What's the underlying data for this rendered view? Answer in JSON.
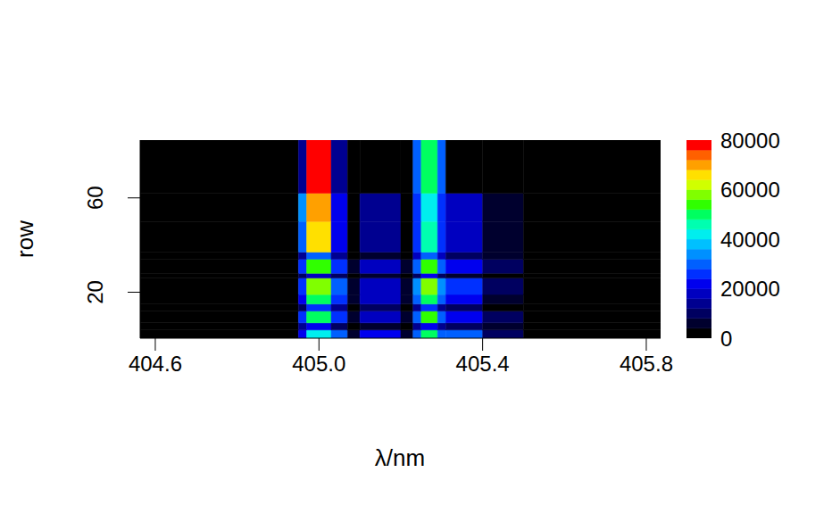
{
  "chart_data": {
    "type": "heatmap",
    "x_label": "λ/nm",
    "y_label": "row",
    "xlim": [
      404.563,
      405.835
    ],
    "xticks": [
      {
        "value": 404.6,
        "label": "404.6"
      },
      {
        "value": 405,
        "label": "405.0"
      },
      {
        "value": 405.4,
        "label": "405.4"
      },
      {
        "value": 405.8,
        "label": "405.8"
      }
    ],
    "ylim": [
      0.5,
      84.5
    ],
    "yticks": [
      20,
      60
    ],
    "x_edges": [
      404.563,
      404.95,
      404.97,
      405.03,
      405.07,
      405.1,
      405.2,
      405.23,
      405.25,
      405.29,
      405.31,
      405.4,
      405.5,
      405.835
    ],
    "y_edges": [
      0.5,
      4,
      7,
      12,
      15,
      19,
      26,
      28,
      34,
      37,
      50,
      62,
      84.5
    ],
    "cells": [
      [
        0,
        20000,
        40000,
        30000,
        4000,
        20000,
        4000,
        30000,
        50000,
        30000,
        28000,
        10000,
        0
      ],
      [
        0,
        12000,
        20000,
        10000,
        2000,
        6000,
        2000,
        12000,
        20000,
        12000,
        8000,
        4000,
        0
      ],
      [
        0,
        24000,
        50000,
        26000,
        6000,
        18000,
        6000,
        30000,
        52000,
        30000,
        22000,
        8000,
        0
      ],
      [
        0,
        10000,
        24000,
        12000,
        2000,
        8000,
        2000,
        14000,
        24000,
        14000,
        9000,
        3000,
        0
      ],
      [
        0,
        22000,
        48000,
        24000,
        5000,
        16000,
        5000,
        28000,
        50000,
        28000,
        20000,
        7000,
        0
      ],
      [
        0,
        26000,
        56000,
        28000,
        5000,
        18000,
        5000,
        32000,
        56000,
        32000,
        24000,
        8000,
        0
      ],
      [
        0,
        8000,
        18000,
        9000,
        1000,
        5000,
        1000,
        10000,
        20000,
        10000,
        7000,
        2000,
        0
      ],
      [
        0,
        24000,
        52000,
        26000,
        5000,
        16000,
        5000,
        30000,
        54000,
        30000,
        22000,
        8000,
        0
      ],
      [
        0,
        12000,
        28000,
        14000,
        2000,
        6000,
        2000,
        16000,
        30000,
        16000,
        10000,
        4000,
        0
      ],
      [
        0,
        30000,
        66000,
        22000,
        3000,
        12000,
        3000,
        26000,
        44000,
        26000,
        18000,
        6000,
        0
      ],
      [
        0,
        34000,
        70000,
        22000,
        3000,
        14000,
        3000,
        24000,
        42000,
        24000,
        16000,
        6000,
        0
      ],
      [
        0,
        14000,
        80000,
        14000,
        1000,
        1000,
        1000,
        30000,
        48000,
        30000,
        2000,
        1000,
        0
      ]
    ],
    "colorbar": {
      "range": [
        0,
        80000
      ],
      "ticks": [
        0,
        20000,
        40000,
        60000,
        80000
      ],
      "colors": [
        "#000000",
        "#00002e",
        "#000060",
        "#000090",
        "#0000c0",
        "#0000ee",
        "#0030ff",
        "#0060ff",
        "#0090ff",
        "#00c0ff",
        "#00eeee",
        "#00ffb0",
        "#00ff60",
        "#30ff00",
        "#80ff00",
        "#d0ff00",
        "#ffe000",
        "#ffa000",
        "#ff6000",
        "#ff0000"
      ]
    }
  }
}
